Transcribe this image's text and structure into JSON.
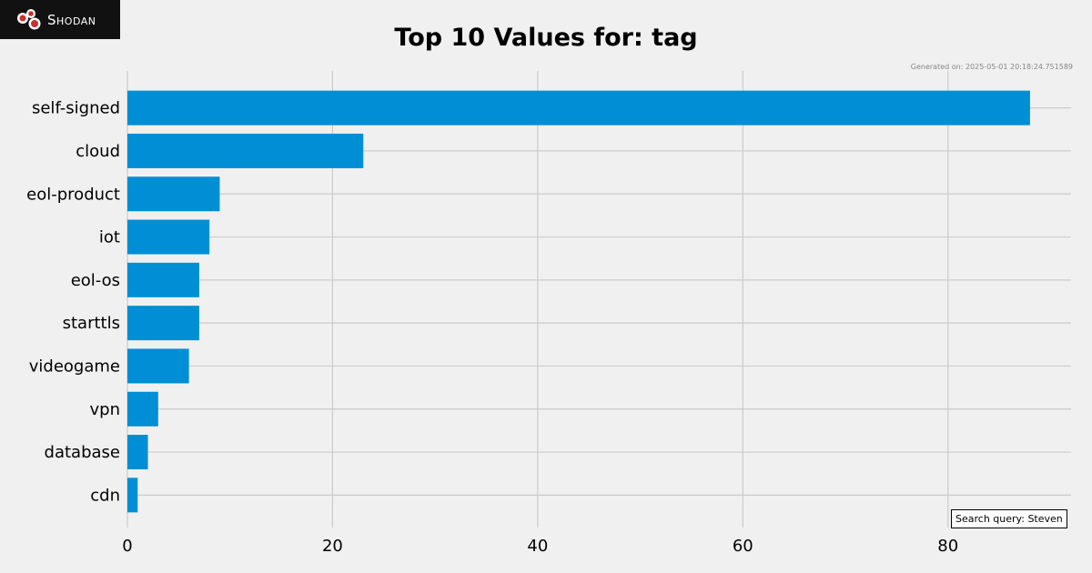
{
  "logo": {
    "text": "Shodan"
  },
  "generated_text": "Generated on: 2025-05-01 20:18:24.751589",
  "query_text": "Search query: Steven",
  "colors": {
    "bar": "#008fd5",
    "grid": "#cbcbcb",
    "background": "#f0f0f0"
  },
  "chart_data": {
    "type": "bar",
    "orientation": "horizontal",
    "title": "Top 10 Values for: tag",
    "xlabel": "",
    "ylabel": "",
    "categories": [
      "self-signed",
      "cloud",
      "eol-product",
      "iot",
      "eol-os",
      "starttls",
      "videogame",
      "vpn",
      "database",
      "cdn"
    ],
    "values": [
      88,
      23,
      9,
      8,
      7,
      7,
      6,
      3,
      2,
      1
    ],
    "xlim": [
      0,
      92
    ],
    "xticks": [
      0,
      20,
      40,
      60,
      80
    ],
    "grid": true
  }
}
